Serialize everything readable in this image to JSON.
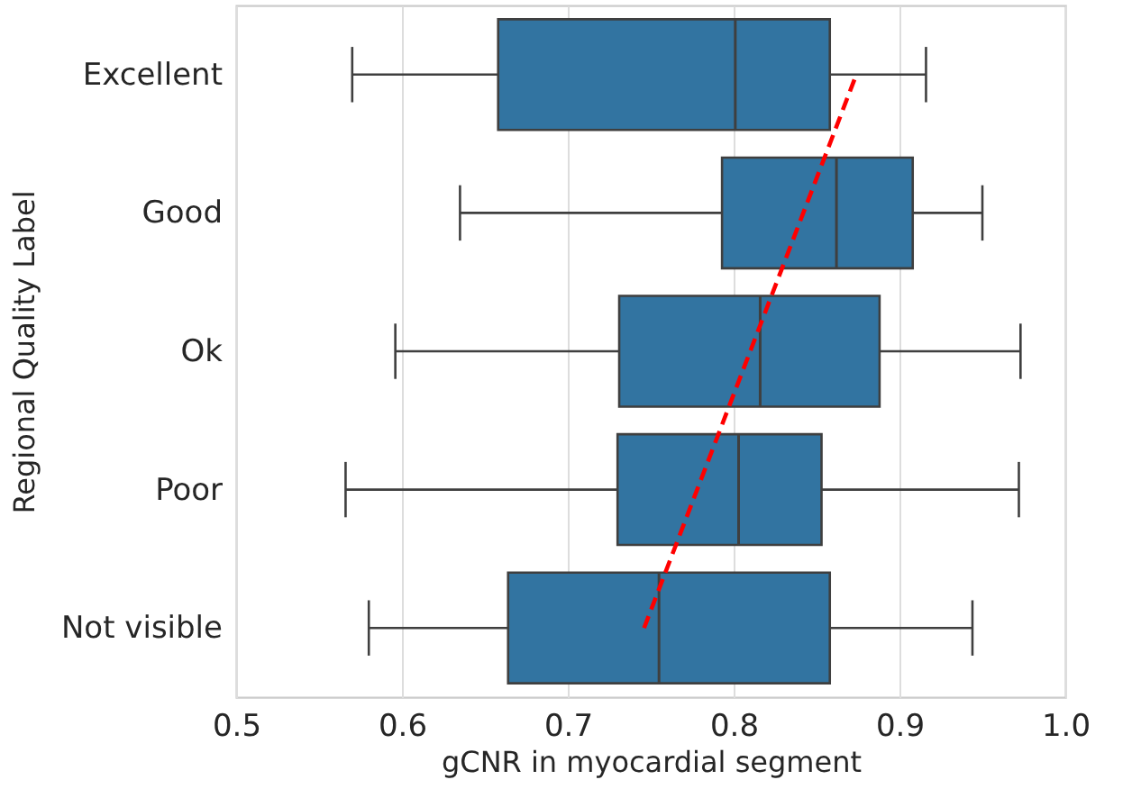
{
  "chart_data": {
    "type": "box",
    "orientation": "horizontal",
    "categories": [
      "Excellent",
      "Good",
      "Ok",
      "Poor",
      "Not visible"
    ],
    "xlabel": "gCNR in myocardial segment",
    "ylabel": "Regional Quality Label",
    "xlim": [
      0.5,
      1.0
    ],
    "xticks": [
      0.5,
      0.6,
      0.7,
      0.8,
      0.9,
      {
        "value": 1.0,
        "label": "1.0"
      }
    ],
    "grid": "x",
    "series": [
      {
        "color": "#3274a1",
        "boxes": [
          {
            "low": 0.57,
            "q1": 0.658,
            "median": 0.801,
            "q3": 0.858,
            "high": 0.916
          },
          {
            "low": 0.635,
            "q1": 0.793,
            "median": 0.862,
            "q3": 0.908,
            "high": 0.95
          },
          {
            "low": 0.596,
            "q1": 0.731,
            "median": 0.816,
            "q3": 0.888,
            "high": 0.973
          },
          {
            "low": 0.566,
            "q1": 0.73,
            "median": 0.803,
            "q3": 0.853,
            "high": 0.972
          },
          {
            "low": 0.58,
            "q1": 0.664,
            "median": 0.755,
            "q3": 0.858,
            "high": 0.944
          }
        ]
      },
      {
        "type": "line",
        "color": "#ff0000",
        "line_style": "dashed",
        "values": [
          0.874,
          0.842,
          0.81,
          0.778,
          0.746
        ]
      }
    ]
  }
}
